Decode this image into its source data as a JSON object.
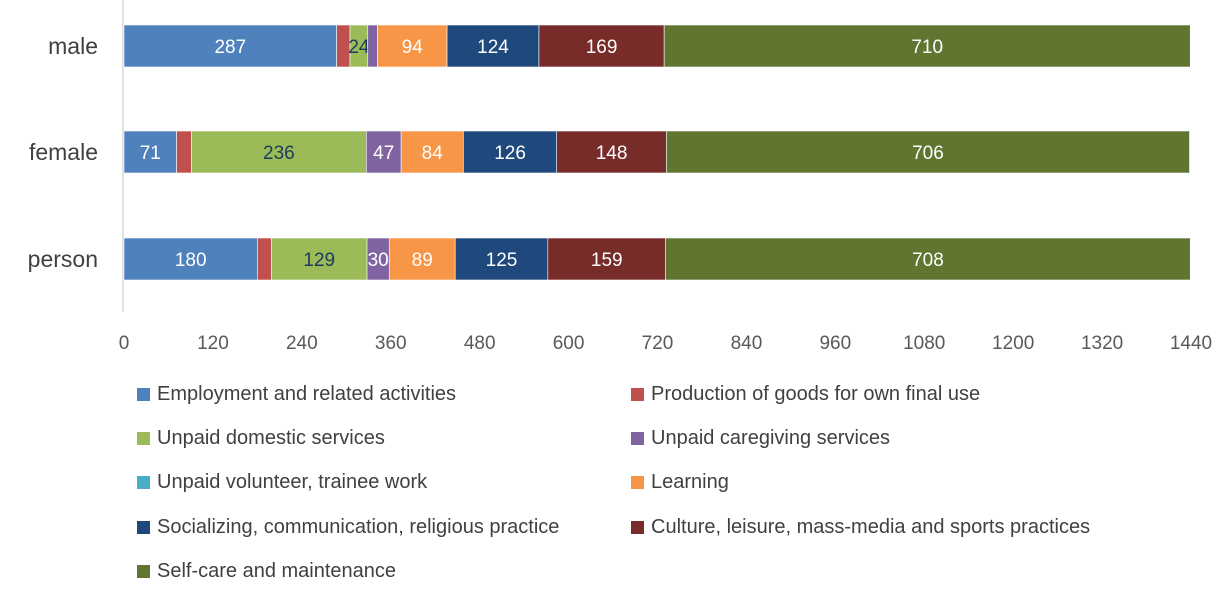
{
  "chart_data": {
    "type": "bar",
    "orientation": "horizontal",
    "stacked": true,
    "categories": [
      "male",
      "female",
      "person"
    ],
    "xlim": [
      0,
      1440
    ],
    "xticks": [
      0,
      120,
      240,
      360,
      480,
      600,
      720,
      840,
      960,
      1080,
      1200,
      1320,
      1440
    ],
    "grid": false,
    "legend_position": "bottom",
    "series": [
      {
        "name": "Employment and related activities",
        "color": "#4f81bd",
        "values": [
          287,
          71,
          180
        ],
        "labels": [
          "287",
          "71",
          "180"
        ],
        "label_color": "#ffffff"
      },
      {
        "name": "Production of goods for own final use",
        "color": "#c0504d",
        "values": [
          18,
          20,
          19
        ],
        "labels": [
          "",
          "",
          ""
        ],
        "label_color": "#ffffff"
      },
      {
        "name": "Unpaid domestic services",
        "color": "#9bbb59",
        "values": [
          24,
          236,
          129
        ],
        "labels": [
          "24",
          "236",
          "129"
        ],
        "label_color": "#1f3b5c"
      },
      {
        "name": "Unpaid caregiving services",
        "color": "#8064a2",
        "values": [
          13,
          47,
          30
        ],
        "labels": [
          "",
          "47",
          "30"
        ],
        "label_color": "#ffffff"
      },
      {
        "name": "Unpaid volunteer, trainee work",
        "color": "#4bacc6",
        "values": [
          0,
          0,
          0
        ],
        "labels": [
          "",
          "",
          ""
        ],
        "label_color": "#ffffff"
      },
      {
        "name": "Learning",
        "color": "#f79646",
        "values": [
          94,
          84,
          89
        ],
        "labels": [
          "94",
          "84",
          "89"
        ],
        "label_color": "#ffffff"
      },
      {
        "name": "Socializing, communication, religious practice",
        "color": "#1f497d",
        "values": [
          124,
          126,
          125
        ],
        "labels": [
          "124",
          "126",
          "125"
        ],
        "label_color": "#ffffff"
      },
      {
        "name": "Culture, leisure, mass-media and sports practices",
        "color": "#772c2a",
        "values": [
          169,
          148,
          159
        ],
        "labels": [
          "169",
          "148",
          "159"
        ],
        "label_color": "#ffffff"
      },
      {
        "name": "Self-care and maintenance",
        "color": "#5f7530",
        "values": [
          710,
          706,
          708
        ],
        "labels": [
          "710",
          "706",
          "708"
        ],
        "label_color": "#ffffff"
      }
    ]
  }
}
